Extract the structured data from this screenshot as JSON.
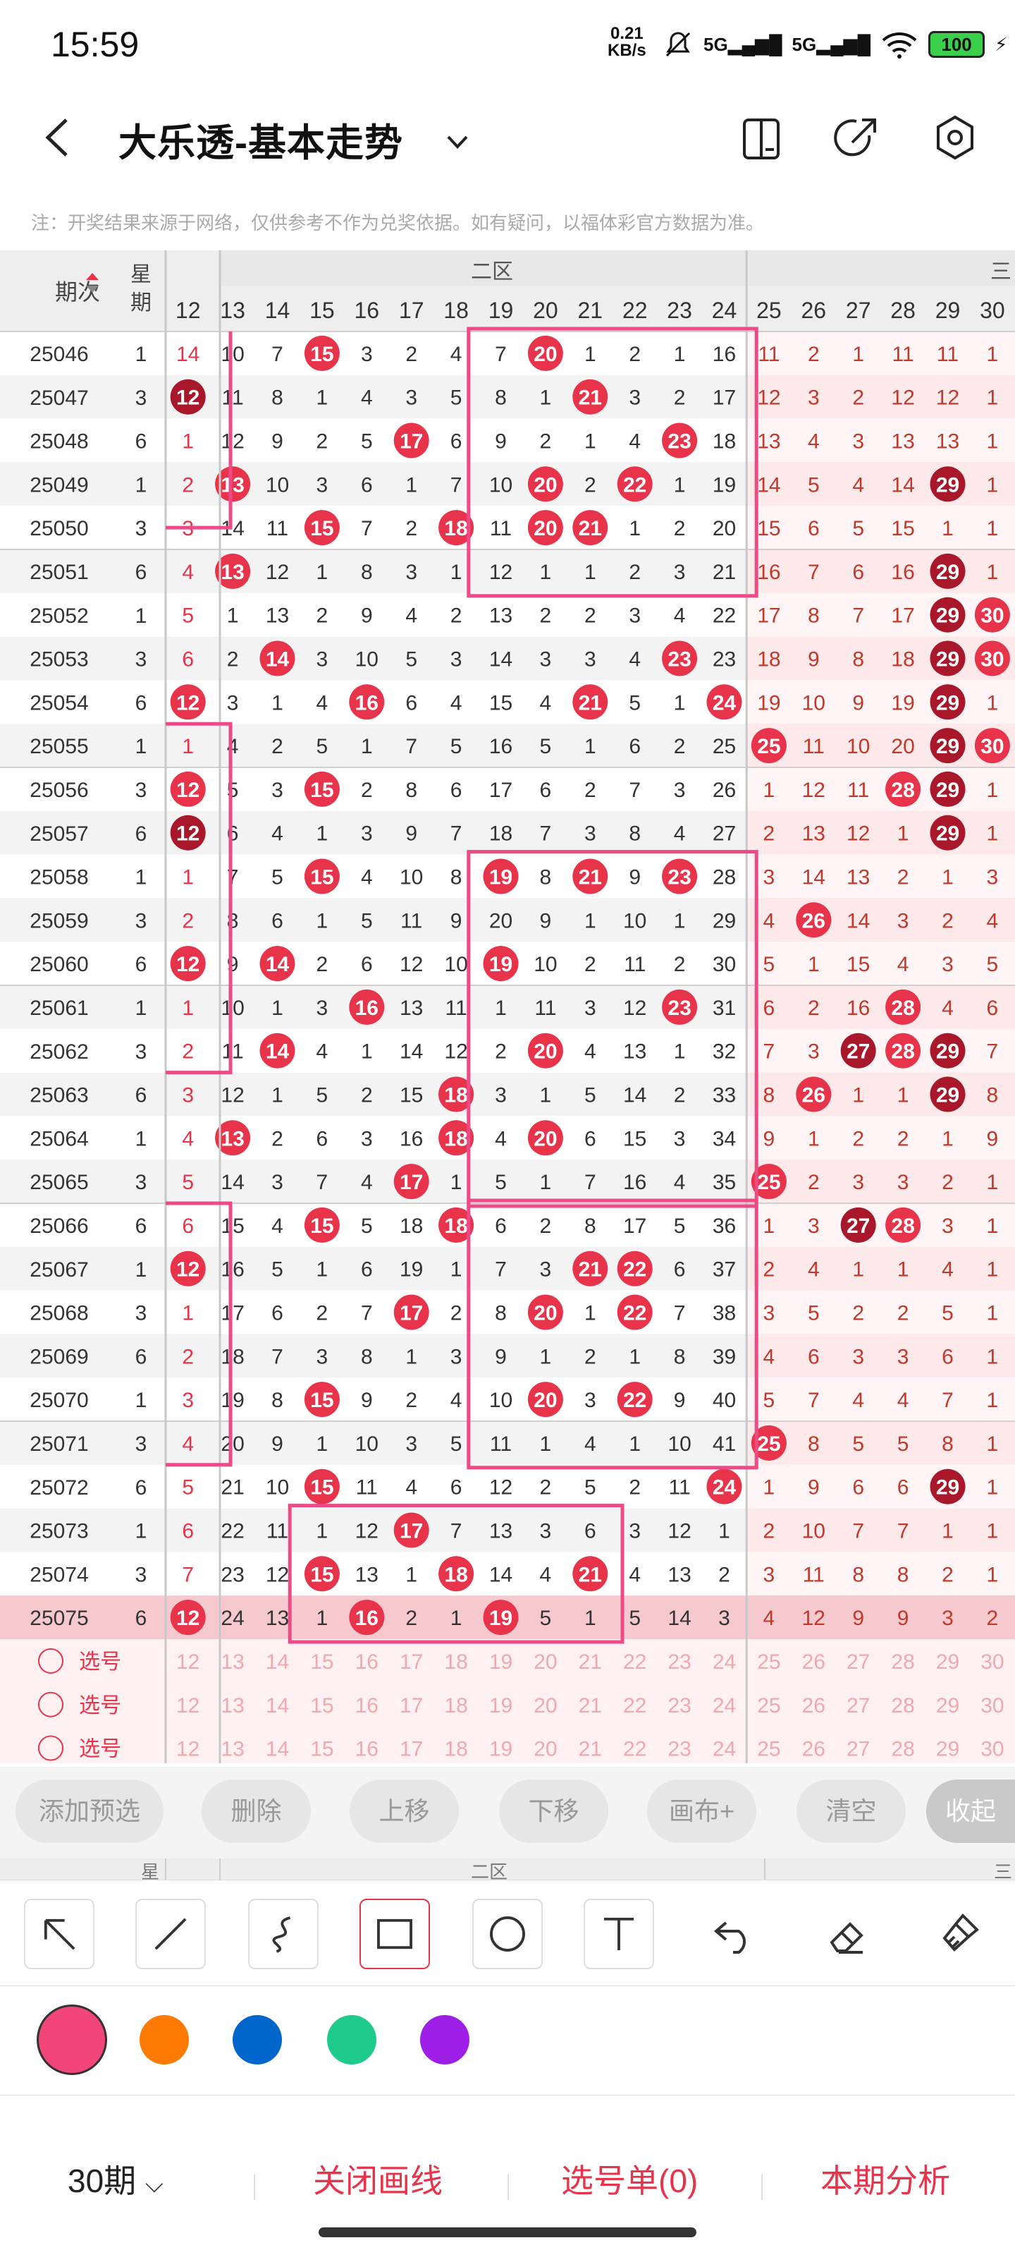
{
  "status": {
    "time": "15:59",
    "speed": "0.21",
    "speed_unit": "KB/s",
    "sig1": "5G",
    "sig2": "5G",
    "battery": "100"
  },
  "header": {
    "title": "大乐透-基本走势",
    "icons": [
      "back-arrow-icon",
      "chevron-down-icon",
      "device-icon",
      "share-icon",
      "settings-icon"
    ]
  },
  "note": "注：开奖结果来源于网络，仅供参考不作为兑奖依据。如有疑问，以福体彩官方数据为准。",
  "table": {
    "col_period": "期次",
    "col_week": "星期",
    "zone_label": "二区",
    "zone_label_next": "三",
    "cols": [
      12,
      13,
      14,
      15,
      16,
      17,
      18,
      19,
      20,
      21,
      22,
      23,
      24,
      25,
      26,
      27,
      28,
      29,
      30
    ],
    "rows": [
      {
        "p": "25046",
        "w": "1",
        "hi": [],
        "c": [
          "14",
          "10",
          "7",
          "15",
          "3",
          "2",
          "4",
          "7",
          "20",
          "1",
          "2",
          "1",
          "16",
          "11",
          "2",
          "1",
          "11",
          "11",
          "1"
        ]
      },
      {
        "p": "25047",
        "w": "3",
        "hi": [],
        "c": [
          "12",
          "11",
          "8",
          "1",
          "4",
          "3",
          "5",
          "8",
          "1",
          "21",
          "3",
          "2",
          "17",
          "12",
          "3",
          "2",
          "12",
          "12",
          "1"
        ]
      },
      {
        "p": "25048",
        "w": "6",
        "hi": [],
        "c": [
          "1",
          "12",
          "9",
          "2",
          "5",
          "17",
          "6",
          "9",
          "2",
          "1",
          "4",
          "23",
          "18",
          "13",
          "4",
          "3",
          "13",
          "13",
          "1"
        ]
      },
      {
        "p": "25049",
        "w": "1",
        "hi": [],
        "c": [
          "2",
          "13",
          "10",
          "3",
          "6",
          "1",
          "7",
          "10",
          "20",
          "2",
          "22",
          "1",
          "19",
          "14",
          "5",
          "4",
          "14",
          "29",
          "1"
        ]
      },
      {
        "p": "25050",
        "w": "3",
        "hi": [],
        "c": [
          "3",
          "14",
          "11",
          "15",
          "7",
          "2",
          "18",
          "11",
          "20",
          "21",
          "1",
          "2",
          "20",
          "15",
          "6",
          "5",
          "15",
          "1",
          "1"
        ]
      },
      {
        "p": "25051",
        "w": "6",
        "hi": [],
        "c": [
          "4",
          "13",
          "12",
          "1",
          "8",
          "3",
          "1",
          "12",
          "1",
          "1",
          "2",
          "3",
          "21",
          "16",
          "7",
          "6",
          "16",
          "29",
          "1"
        ]
      },
      {
        "p": "25052",
        "w": "1",
        "hi": [],
        "c": [
          "5",
          "1",
          "13",
          "2",
          "9",
          "4",
          "2",
          "13",
          "2",
          "2",
          "3",
          "4",
          "22",
          "17",
          "8",
          "7",
          "17",
          "29",
          "30"
        ]
      },
      {
        "p": "25053",
        "w": "3",
        "hi": [],
        "c": [
          "6",
          "2",
          "14",
          "3",
          "10",
          "5",
          "3",
          "14",
          "3",
          "3",
          "4",
          "23",
          "23",
          "18",
          "9",
          "8",
          "18",
          "29",
          "30"
        ]
      },
      {
        "p": "25054",
        "w": "6",
        "hi": [],
        "c": [
          "12",
          "3",
          "1",
          "4",
          "16",
          "6",
          "4",
          "15",
          "4",
          "21",
          "5",
          "1",
          "24",
          "19",
          "10",
          "9",
          "19",
          "29",
          "1"
        ]
      },
      {
        "p": "25055",
        "w": "1",
        "hi": [],
        "c": [
          "1",
          "4",
          "2",
          "5",
          "1",
          "7",
          "5",
          "16",
          "5",
          "1",
          "6",
          "2",
          "25",
          "25",
          "11",
          "10",
          "20",
          "29",
          "30"
        ]
      },
      {
        "p": "25056",
        "w": "3",
        "hi": [],
        "c": [
          "12",
          "5",
          "3",
          "15",
          "2",
          "8",
          "6",
          "17",
          "6",
          "2",
          "7",
          "3",
          "26",
          "1",
          "12",
          "11",
          "28",
          "29",
          "1"
        ]
      },
      {
        "p": "25057",
        "w": "6",
        "hi": [],
        "c": [
          "12",
          "6",
          "4",
          "1",
          "3",
          "9",
          "7",
          "18",
          "7",
          "3",
          "8",
          "4",
          "27",
          "2",
          "13",
          "12",
          "1",
          "29",
          "1"
        ]
      },
      {
        "p": "25058",
        "w": "1",
        "hi": [],
        "c": [
          "1",
          "7",
          "5",
          "15",
          "4",
          "10",
          "8",
          "19",
          "8",
          "21",
          "9",
          "23",
          "28",
          "3",
          "14",
          "13",
          "2",
          "1",
          "3"
        ]
      },
      {
        "p": "25059",
        "w": "3",
        "hi": [],
        "c": [
          "2",
          "8",
          "6",
          "1",
          "5",
          "11",
          "9",
          "20",
          "9",
          "1",
          "10",
          "1",
          "29",
          "4",
          "26",
          "14",
          "3",
          "2",
          "4"
        ]
      },
      {
        "p": "25060",
        "w": "6",
        "hi": [],
        "c": [
          "12",
          "9",
          "14",
          "2",
          "6",
          "12",
          "10",
          "19",
          "10",
          "2",
          "11",
          "2",
          "30",
          "5",
          "1",
          "15",
          "4",
          "3",
          "5"
        ]
      },
      {
        "p": "25061",
        "w": "1",
        "hi": [],
        "c": [
          "1",
          "10",
          "1",
          "3",
          "16",
          "13",
          "11",
          "1",
          "11",
          "3",
          "12",
          "23",
          "31",
          "6",
          "2",
          "16",
          "28",
          "4",
          "6"
        ]
      },
      {
        "p": "25062",
        "w": "3",
        "hi": [],
        "c": [
          "2",
          "11",
          "14",
          "4",
          "1",
          "14",
          "12",
          "2",
          "20",
          "4",
          "13",
          "1",
          "32",
          "7",
          "3",
          "27",
          "28",
          "29",
          "7"
        ]
      },
      {
        "p": "25063",
        "w": "6",
        "hi": [],
        "c": [
          "3",
          "12",
          "1",
          "5",
          "2",
          "15",
          "18",
          "3",
          "1",
          "5",
          "14",
          "2",
          "33",
          "8",
          "26",
          "1",
          "1",
          "29",
          "8"
        ]
      },
      {
        "p": "25064",
        "w": "1",
        "hi": [],
        "c": [
          "4",
          "13",
          "2",
          "6",
          "3",
          "16",
          "18",
          "4",
          "20",
          "6",
          "15",
          "3",
          "34",
          "9",
          "1",
          "2",
          "2",
          "1",
          "9"
        ]
      },
      {
        "p": "25065",
        "w": "3",
        "hi": [],
        "c": [
          "5",
          "14",
          "3",
          "7",
          "4",
          "17",
          "1",
          "5",
          "1",
          "7",
          "16",
          "4",
          "35",
          "25",
          "2",
          "3",
          "3",
          "2",
          "1"
        ]
      },
      {
        "p": "25066",
        "w": "6",
        "hi": [],
        "c": [
          "6",
          "15",
          "4",
          "15",
          "5",
          "18",
          "18",
          "6",
          "2",
          "8",
          "17",
          "5",
          "36",
          "1",
          "3",
          "27",
          "28",
          "3",
          "1"
        ]
      },
      {
        "p": "25067",
        "w": "1",
        "hi": [],
        "c": [
          "12",
          "16",
          "5",
          "1",
          "6",
          "19",
          "1",
          "7",
          "3",
          "21",
          "22",
          "6",
          "37",
          "2",
          "4",
          "1",
          "1",
          "4",
          "1"
        ]
      },
      {
        "p": "25068",
        "w": "3",
        "hi": [],
        "c": [
          "1",
          "17",
          "6",
          "2",
          "7",
          "17",
          "2",
          "8",
          "20",
          "1",
          "22",
          "7",
          "38",
          "3",
          "5",
          "2",
          "2",
          "5",
          "1"
        ]
      },
      {
        "p": "25069",
        "w": "6",
        "hi": [],
        "c": [
          "2",
          "18",
          "7",
          "3",
          "8",
          "1",
          "3",
          "9",
          "1",
          "2",
          "1",
          "8",
          "39",
          "4",
          "6",
          "3",
          "3",
          "6",
          "1"
        ]
      },
      {
        "p": "25070",
        "w": "1",
        "hi": [],
        "c": [
          "3",
          "19",
          "8",
          "15",
          "9",
          "2",
          "4",
          "10",
          "20",
          "3",
          "22",
          "9",
          "40",
          "5",
          "7",
          "4",
          "4",
          "7",
          "1"
        ]
      },
      {
        "p": "25071",
        "w": "3",
        "hi": [],
        "c": [
          "4",
          "20",
          "9",
          "1",
          "10",
          "3",
          "5",
          "11",
          "1",
          "4",
          "1",
          "10",
          "41",
          "25",
          "8",
          "5",
          "5",
          "8",
          "1"
        ]
      },
      {
        "p": "25072",
        "w": "6",
        "hi": [],
        "c": [
          "5",
          "21",
          "10",
          "15",
          "11",
          "4",
          "6",
          "12",
          "2",
          "5",
          "2",
          "11",
          "24",
          "1",
          "9",
          "6",
          "6",
          "29",
          "1"
        ]
      },
      {
        "p": "25073",
        "w": "1",
        "hi": [],
        "c": [
          "6",
          "22",
          "11",
          "1",
          "12",
          "17",
          "7",
          "13",
          "3",
          "6",
          "3",
          "12",
          "1",
          "2",
          "10",
          "7",
          "7",
          "1",
          "1"
        ]
      },
      {
        "p": "25074",
        "w": "3",
        "hi": [],
        "c": [
          "7",
          "23",
          "12",
          "15",
          "13",
          "1",
          "18",
          "14",
          "4",
          "21",
          "4",
          "13",
          "2",
          "3",
          "11",
          "8",
          "8",
          "2",
          "1"
        ]
      },
      {
        "p": "25075",
        "w": "6",
        "hi": [],
        "c": [
          "12",
          "24",
          "13",
          "1",
          "16",
          "2",
          "1",
          "19",
          "5",
          "1",
          "5",
          "14",
          "3",
          "4",
          "12",
          "9",
          "9",
          "3",
          "2"
        ]
      }
    ],
    "pick_label": "选号"
  },
  "tools": {
    "chips": [
      "添加预选",
      "删除",
      "上移",
      "下移",
      "画布+",
      "清空",
      "收起"
    ]
  },
  "stub": {
    "week": "星",
    "zone": "二区",
    "zone_next": "三"
  },
  "drawtools": [
    "arrow-tool-icon",
    "line-tool-icon",
    "curve-tool-icon",
    "rectangle-tool-icon",
    "circle-tool-icon",
    "text-tool-icon",
    "undo-icon",
    "eraser-icon",
    "clear-icon"
  ],
  "colors": [
    "#f2457a",
    "#ff7a00",
    "#0066cc",
    "#1ecb8b",
    "#9d1fe6"
  ],
  "bottom": {
    "period": "30期",
    "close_draw": "关闭画线",
    "pick_list": "选号单(0)",
    "analysis": "本期分析"
  }
}
